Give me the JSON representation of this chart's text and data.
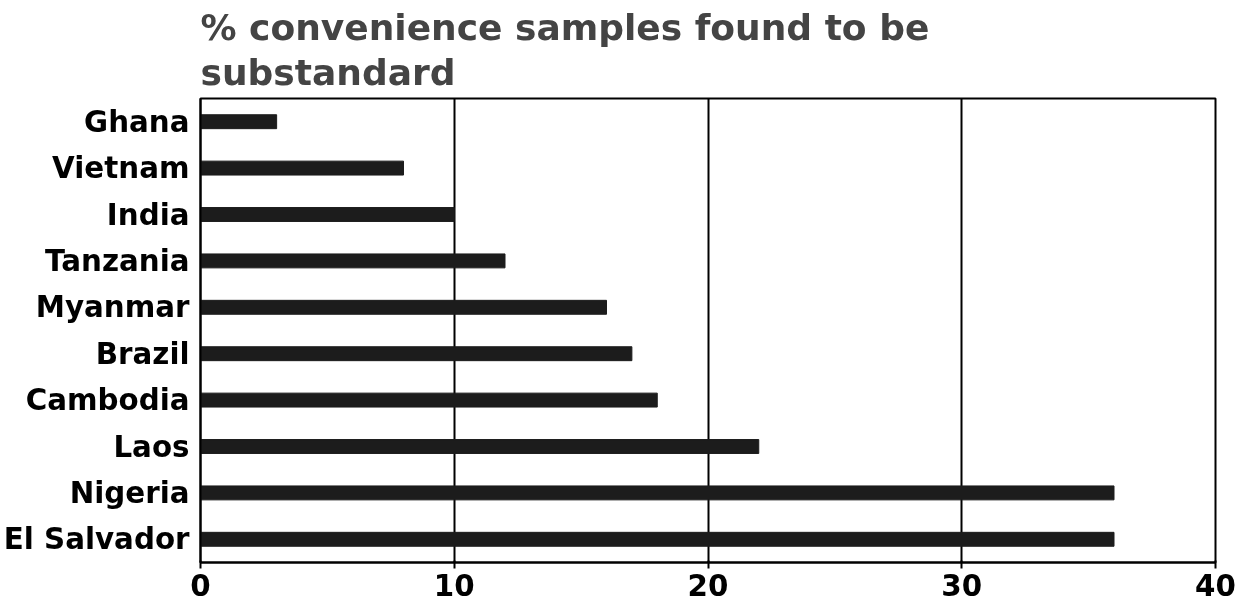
{
  "chart_data": {
    "type": "bar",
    "orientation": "horizontal",
    "title": "% convenience samples found to be\nsubstandard",
    "categories": [
      "Ghana",
      "Vietnam",
      "India",
      "Tanzania",
      "Myanmar",
      "Brazil",
      "Cambodia",
      "Laos",
      "Nigeria",
      "El Salvador"
    ],
    "values": [
      3,
      8,
      10,
      12,
      16,
      17,
      18,
      22,
      36,
      36
    ],
    "color": "#1c1c1c",
    "xlim": [
      0,
      40
    ],
    "xticks": [
      0,
      10,
      20,
      30,
      40
    ],
    "grid": "x"
  }
}
